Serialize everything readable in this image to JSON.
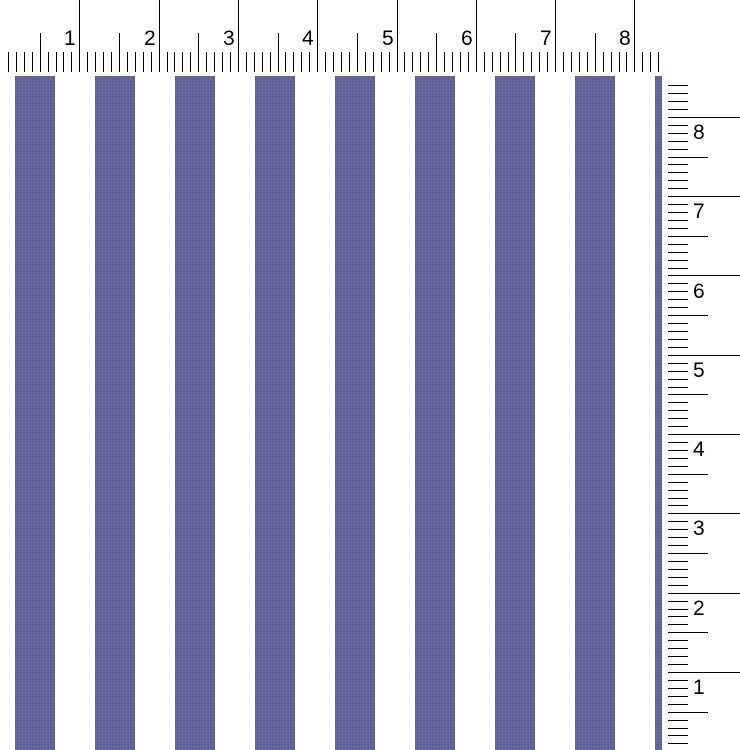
{
  "pattern": {
    "stripe_color": "#5b5f96",
    "background_color": "#ffffff",
    "orientation": "vertical"
  },
  "top_ruler": {
    "labels": [
      "1",
      "2",
      "3",
      "4",
      "5",
      "6",
      "7",
      "8"
    ]
  },
  "right_ruler": {
    "labels": [
      "1",
      "2",
      "3",
      "4",
      "5",
      "6",
      "7",
      "8"
    ]
  }
}
